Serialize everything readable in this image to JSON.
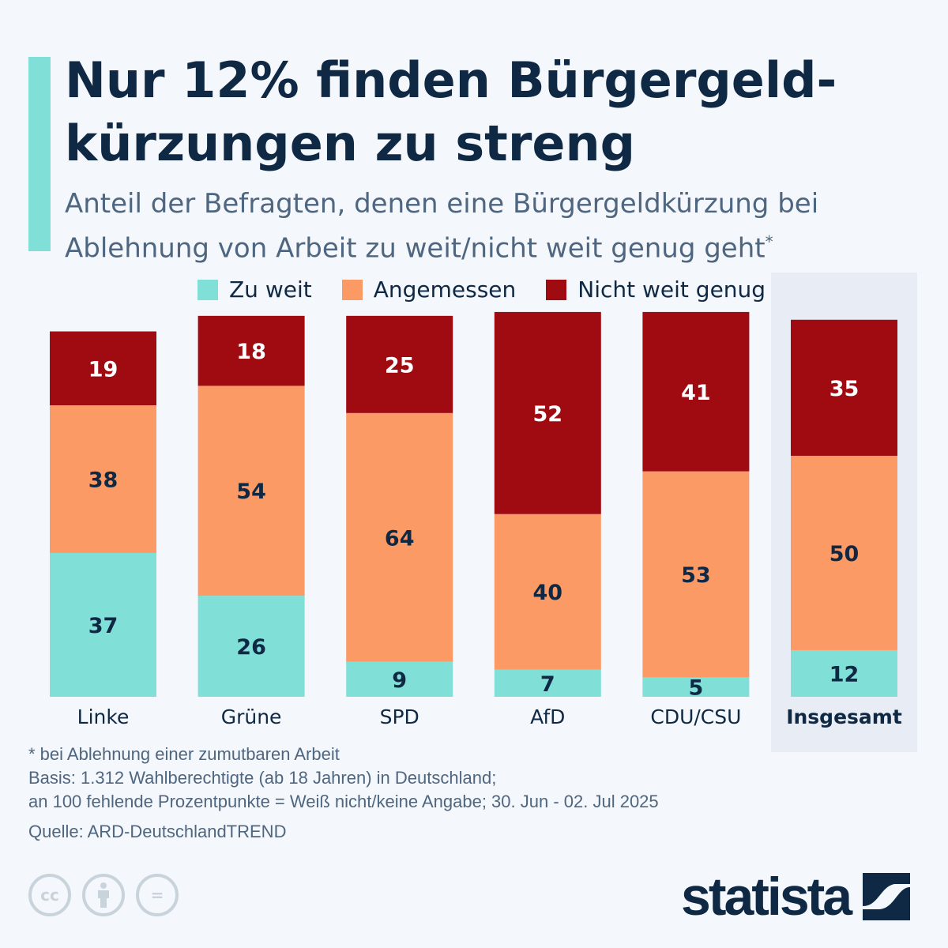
{
  "header": {
    "title": "Nur 12% finden Bürgergeld-kürzungen zu streng",
    "subtitle": "Anteil der Befragten, denen eine Bürgergeldkürzung bei Ablehnung von Arbeit zu weit/nicht weit genug geht",
    "subtitle_mark": "*"
  },
  "chart_data": {
    "type": "bar",
    "stacked": true,
    "categories": [
      "Linke",
      "Grüne",
      "SPD",
      "AfD",
      "CDU/CSU",
      "Insgesamt"
    ],
    "highlight_category": "Insgesamt",
    "series": [
      {
        "name": "Zu weit",
        "color": "#80dfd6",
        "values": [
          37,
          26,
          9,
          7,
          5,
          12
        ]
      },
      {
        "name": "Angemessen",
        "color": "#fc9a66",
        "values": [
          38,
          54,
          64,
          40,
          53,
          50
        ]
      },
      {
        "name": "Nicht weit genug",
        "color": "#a00b12",
        "values": [
          19,
          18,
          25,
          52,
          41,
          35
        ]
      }
    ],
    "ylim": [
      0,
      100
    ],
    "grid": false,
    "legend_position": "top"
  },
  "footer": {
    "note": "* bei Ablehnung einer zumutbaren Arbeit",
    "basis_1": "Basis: 1.312 Wahlberechtigte (ab 18 Jahren) in Deutschland;",
    "basis_2": "an 100 fehlende Prozentpunkte = Weiß nicht/keine Angabe; 30. Jun - 02. Jul 2025",
    "source": "Quelle: ARD-DeutschlandTREND",
    "license_icons": [
      "cc-icon",
      "attribution-icon",
      "no-derivatives-icon"
    ],
    "cc_text": "cc",
    "nd_text": "=",
    "logo": "statista"
  },
  "colors": {
    "navy": "#0f2844",
    "background": "#f4f7fb",
    "highlight": "#e8edf5"
  }
}
